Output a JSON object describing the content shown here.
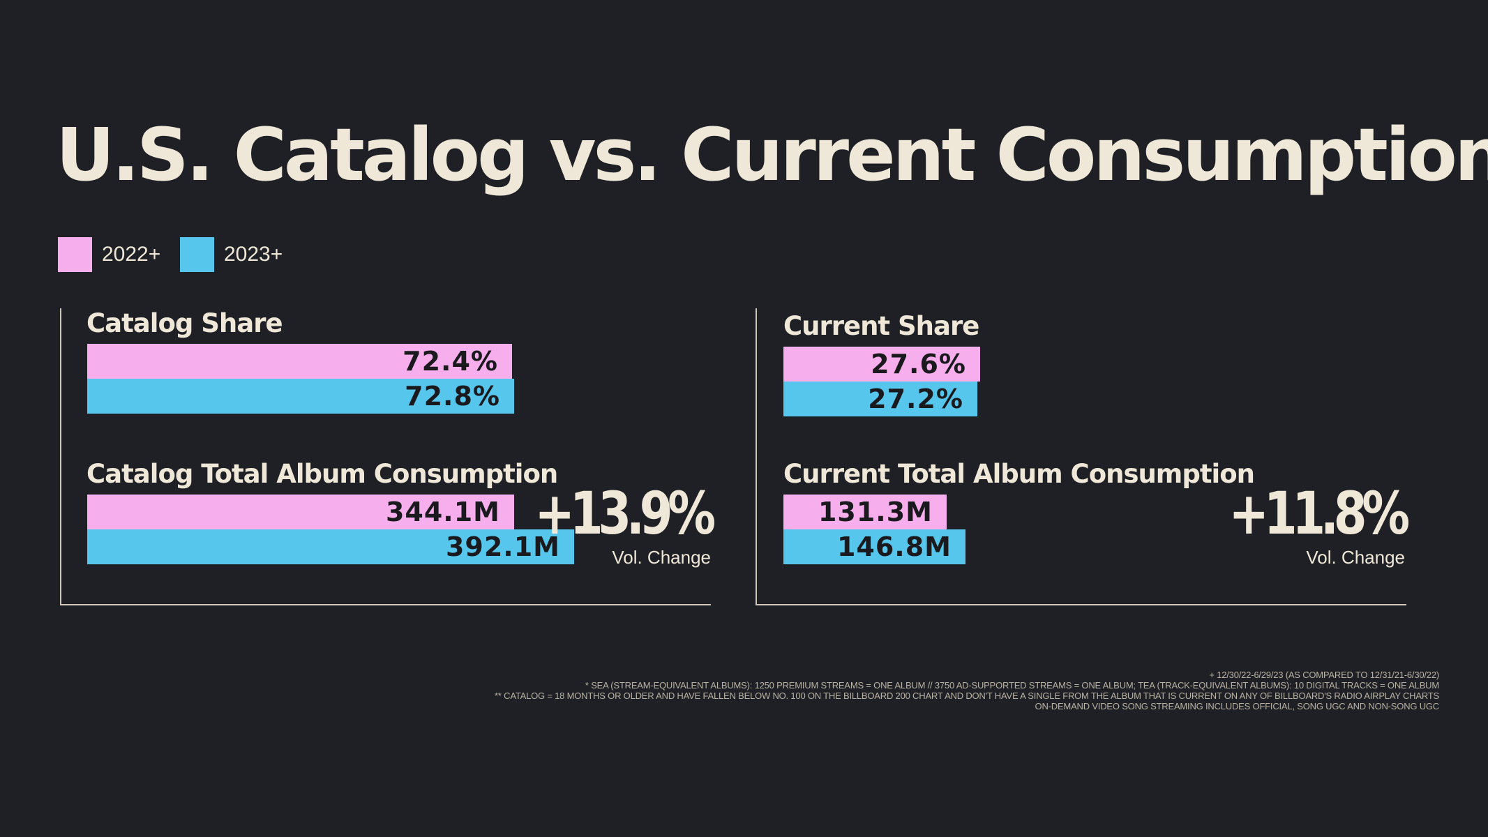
{
  "title": "U.S. Catalog vs. Current Consumption",
  "legend": [
    {
      "label": "2022+",
      "color": "#f7aeec"
    },
    {
      "label": "2023+",
      "color": "#57c6ec"
    }
  ],
  "chart_data": [
    {
      "type": "bar",
      "title": "Catalog Share",
      "series": [
        {
          "name": "2022+",
          "values": [
            72.4
          ],
          "label": "72.4%"
        },
        {
          "name": "2023+",
          "values": [
            72.8
          ],
          "label": "72.8%"
        }
      ]
    },
    {
      "type": "bar",
      "title": "Catalog Total Album Consumption",
      "series": [
        {
          "name": "2022+",
          "values": [
            344.1
          ],
          "label": "344.1M"
        },
        {
          "name": "2023+",
          "values": [
            392.1
          ],
          "label": "392.1M"
        }
      ],
      "change": "+13.9%",
      "change_label": "Vol. Change"
    },
    {
      "type": "bar",
      "title": "Current Share",
      "series": [
        {
          "name": "2022+",
          "values": [
            27.6
          ],
          "label": "27.6%"
        },
        {
          "name": "2023+",
          "values": [
            27.2
          ],
          "label": "27.2%"
        }
      ]
    },
    {
      "type": "bar",
      "title": "Current Total Album Consumption",
      "series": [
        {
          "name": "2022+",
          "values": [
            131.3
          ],
          "label": "131.3M"
        },
        {
          "name": "2023+",
          "values": [
            146.8
          ],
          "label": "146.8M"
        }
      ],
      "change": "+11.8%",
      "change_label": "Vol. Change"
    }
  ],
  "footnotes": [
    "+ 12/30/22-6/29/23 (AS COMPARED TO 12/31/21-6/30/22)",
    "* SEA (STREAM-EQUIVALENT ALBUMS): 1250 PREMIUM STREAMS = ONE ALBUM // 3750 AD-SUPPORTED STREAMS = ONE ALBUM; TEA (TRACK-EQUIVALENT ALBUMS): 10 DIGITAL TRACKS = ONE ALBUM",
    "** CATALOG = 18 MONTHS OR OLDER AND HAVE FALLEN BELOW NO. 100 ON THE BILLBOARD 200 CHART AND DON'T HAVE A SINGLE FROM THE ALBUM THAT IS CURRENT ON ANY OF BILLBOARD'S RADIO AIRPLAY CHARTS",
    "ON-DEMAND VIDEO SONG STREAMING INCLUDES OFFICIAL, SONG UGC AND NON-SONG UGC"
  ]
}
